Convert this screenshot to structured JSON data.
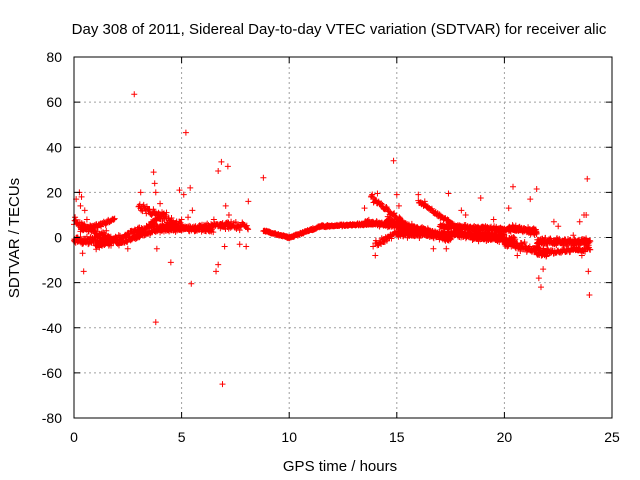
{
  "chart_data": {
    "type": "scatter",
    "title": "Day 308 of 2011, Sidereal Day-to-day VTEC variation (SDTVAR) for receiver alic",
    "xlabel": "GPS time / hours",
    "ylabel": "SDTVAR / TECUs",
    "xlim": [
      0,
      25
    ],
    "ylim": [
      -80,
      80
    ],
    "grid": true,
    "marker": "+",
    "marker_color": "#ff0000",
    "xticks": [
      0,
      5,
      10,
      15,
      20,
      25
    ],
    "yticks": [
      -80,
      -60,
      -40,
      -20,
      0,
      20,
      40,
      60,
      80
    ],
    "xtick_labels": [
      "0",
      "5",
      "10",
      "15",
      "20",
      "25"
    ],
    "ytick_labels": [
      "-80",
      "-60",
      "-40",
      "-20",
      "0",
      "20",
      "40",
      "60",
      "80"
    ],
    "series": [
      {
        "name": "SDTVAR",
        "bands": [
          {
            "t0": 0.0,
            "t1": 1.8,
            "v0": -1,
            "v1": -2,
            "noise": 3,
            "step": 0.02
          },
          {
            "t0": 0.0,
            "t1": 2.0,
            "v0": 7,
            "v1": -2,
            "noise": 2,
            "step": 0.03
          },
          {
            "t0": 0.3,
            "t1": 1.9,
            "v0": 3,
            "v1": 8,
            "noise": 1.5,
            "step": 0.03
          },
          {
            "t0": 1.0,
            "t1": 3.2,
            "v0": -4,
            "v1": 4,
            "noise": 2,
            "step": 0.03
          },
          {
            "t0": 2.0,
            "t1": 4.6,
            "v0": -3,
            "v1": 6,
            "noise": 1.5,
            "step": 0.03
          },
          {
            "t0": 2.8,
            "t1": 4.2,
            "v0": 0,
            "v1": 11,
            "noise": 1.5,
            "step": 0.03
          },
          {
            "t0": 3.0,
            "t1": 5.2,
            "v0": 14,
            "v1": 4,
            "noise": 2.5,
            "step": 0.03
          },
          {
            "t0": 3.5,
            "t1": 6.5,
            "v0": 5,
            "v1": 3,
            "noise": 2,
            "step": 0.03
          },
          {
            "t0": 4.0,
            "t1": 7.2,
            "v0": 3,
            "v1": 6,
            "noise": 1.5,
            "step": 0.03
          },
          {
            "t0": 6.8,
            "t1": 8.1,
            "v0": 5,
            "v1": 5,
            "noise": 2.5,
            "step": 0.03
          },
          {
            "t0": 8.8,
            "t1": 10.0,
            "v0": 3,
            "v1": 0,
            "noise": 0.6,
            "step": 0.02
          },
          {
            "t0": 10.0,
            "t1": 11.5,
            "v0": 0,
            "v1": 5,
            "noise": 0.6,
            "step": 0.02
          },
          {
            "t0": 11.5,
            "t1": 14.0,
            "v0": 5,
            "v1": 6,
            "noise": 0.6,
            "step": 0.02
          },
          {
            "t0": 13.5,
            "t1": 16.5,
            "v0": 7,
            "v1": 3,
            "noise": 1.5,
            "step": 0.02
          },
          {
            "t0": 13.8,
            "t1": 15.5,
            "v0": 18,
            "v1": 5,
            "noise": 2,
            "step": 0.03
          },
          {
            "t0": 14.0,
            "t1": 15.0,
            "v0": -3,
            "v1": 2,
            "noise": 2,
            "step": 0.03
          },
          {
            "t0": 14.5,
            "t1": 17.5,
            "v0": 8,
            "v1": -1,
            "noise": 2,
            "step": 0.02
          },
          {
            "t0": 15.0,
            "t1": 20.0,
            "v0": 2,
            "v1": 1,
            "noise": 2.5,
            "step": 0.015
          },
          {
            "t0": 16.0,
            "t1": 18.0,
            "v0": 16,
            "v1": 3,
            "noise": 1.5,
            "step": 0.03
          },
          {
            "t0": 17.0,
            "t1": 21.5,
            "v0": 5,
            "v1": 3,
            "noise": 1.5,
            "step": 0.02
          },
          {
            "t0": 18.5,
            "t1": 20.5,
            "v0": 0,
            "v1": -1,
            "noise": 2,
            "step": 0.02
          },
          {
            "t0": 20.0,
            "t1": 22.0,
            "v0": -2,
            "v1": -7,
            "noise": 3,
            "step": 0.02
          },
          {
            "t0": 20.2,
            "t1": 21.5,
            "v0": 5,
            "v1": 2,
            "noise": 2,
            "step": 0.03
          },
          {
            "t0": 21.5,
            "t1": 24.0,
            "v0": -2,
            "v1": -2,
            "noise": 2.5,
            "step": 0.015
          },
          {
            "t0": 21.5,
            "t1": 24.0,
            "v0": -7,
            "v1": -5,
            "noise": 1.5,
            "step": 0.03
          }
        ],
        "outliers": [
          [
            0.05,
            9
          ],
          [
            0.1,
            17
          ],
          [
            0.25,
            20
          ],
          [
            0.3,
            14
          ],
          [
            0.35,
            18
          ],
          [
            0.4,
            -7
          ],
          [
            0.45,
            -15
          ],
          [
            0.5,
            12
          ],
          [
            0.6,
            8
          ],
          [
            1.5,
            3
          ],
          [
            2.5,
            -5
          ],
          [
            2.8,
            63.5
          ],
          [
            3.1,
            20
          ],
          [
            3.3,
            13
          ],
          [
            3.5,
            3
          ],
          [
            3.7,
            29
          ],
          [
            3.75,
            24
          ],
          [
            3.8,
            20
          ],
          [
            3.8,
            -37.5
          ],
          [
            3.85,
            -5
          ],
          [
            4.0,
            15
          ],
          [
            4.3,
            11
          ],
          [
            4.5,
            -11
          ],
          [
            4.9,
            21
          ],
          [
            5.0,
            8
          ],
          [
            5.1,
            19
          ],
          [
            5.2,
            46.5
          ],
          [
            5.3,
            9
          ],
          [
            5.4,
            22
          ],
          [
            5.45,
            -20.5
          ],
          [
            5.5,
            12
          ],
          [
            6.3,
            5
          ],
          [
            6.5,
            8
          ],
          [
            6.6,
            -15
          ],
          [
            6.7,
            -12
          ],
          [
            6.7,
            29.5
          ],
          [
            6.85,
            33.5
          ],
          [
            6.9,
            -65
          ],
          [
            7.0,
            -4
          ],
          [
            7.05,
            14
          ],
          [
            7.15,
            31.5
          ],
          [
            7.2,
            10
          ],
          [
            7.3,
            7
          ],
          [
            7.7,
            -3
          ],
          [
            8.0,
            -4
          ],
          [
            8.1,
            16
          ],
          [
            8.8,
            26.5
          ],
          [
            13.5,
            13
          ],
          [
            13.9,
            -4
          ],
          [
            14.0,
            -8
          ],
          [
            14.1,
            19.5
          ],
          [
            14.4,
            -2
          ],
          [
            14.7,
            10
          ],
          [
            14.85,
            34
          ],
          [
            15.0,
            19
          ],
          [
            15.1,
            14
          ],
          [
            16.0,
            19
          ],
          [
            16.3,
            16
          ],
          [
            16.7,
            -5
          ],
          [
            17.3,
            -5
          ],
          [
            17.4,
            19.5
          ],
          [
            18.0,
            12
          ],
          [
            18.2,
            10
          ],
          [
            18.9,
            17.5
          ],
          [
            19.5,
            8
          ],
          [
            20.2,
            13
          ],
          [
            20.4,
            22.5
          ],
          [
            20.6,
            -8
          ],
          [
            20.8,
            -4
          ],
          [
            21.2,
            17
          ],
          [
            21.5,
            21.5
          ],
          [
            21.6,
            -18
          ],
          [
            21.7,
            -22
          ],
          [
            21.8,
            -14
          ],
          [
            22.3,
            7
          ],
          [
            22.5,
            5
          ],
          [
            23.2,
            1
          ],
          [
            23.5,
            7
          ],
          [
            23.6,
            -8
          ],
          [
            23.7,
            10
          ],
          [
            23.8,
            10
          ],
          [
            23.85,
            26
          ],
          [
            23.9,
            -15
          ],
          [
            23.95,
            -25.5
          ]
        ]
      }
    ]
  }
}
